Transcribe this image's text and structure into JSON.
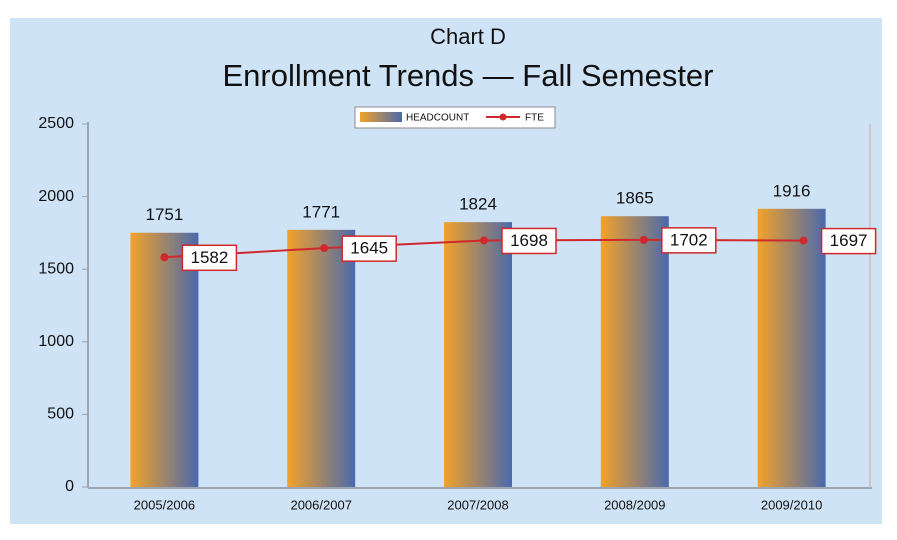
{
  "chart_data": {
    "type": "bar-line",
    "title": "Chart D",
    "subtitle": "Enrollment Trends — Fall Semester",
    "categories": [
      "2005/2006",
      "2006/2007",
      "2007/2008",
      "2008/2009",
      "2009/2010"
    ],
    "series": [
      {
        "name": "HEADCOUNT",
        "type": "bar",
        "color": "#f2a22a",
        "values": [
          1751,
          1771,
          1824,
          1865,
          1916
        ]
      },
      {
        "name": "FTE",
        "type": "line",
        "color": "#d0282c",
        "values": [
          1582,
          1645,
          1698,
          1702,
          1697
        ]
      }
    ],
    "ylim": [
      0,
      2500
    ],
    "yticks": [
      0,
      500,
      1000,
      1500,
      2000,
      2500
    ],
    "legend": "top"
  }
}
